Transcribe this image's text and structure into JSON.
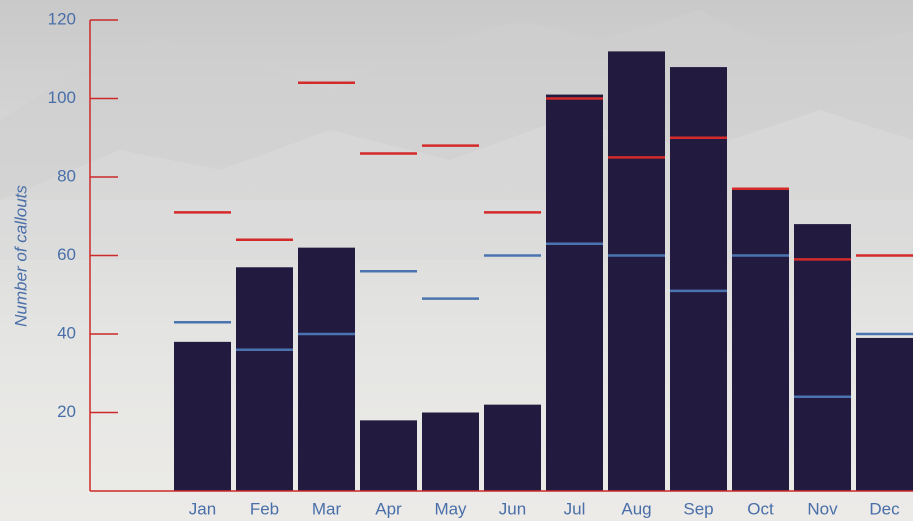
{
  "chart_data": {
    "type": "bar",
    "y_label": "Number of callouts",
    "categories": [
      "Jan",
      "Feb",
      "Mar",
      "Apr",
      "May",
      "Jun",
      "Jul",
      "Aug",
      "Sep",
      "Oct",
      "Nov",
      "Dec"
    ],
    "values": [
      38,
      57,
      62,
      18,
      20,
      22,
      101,
      112,
      108,
      77,
      68,
      39
    ],
    "color": "#231a40",
    "series": [
      {
        "color": "#d42a2a",
        "values": [
          71,
          64,
          104,
          86,
          88,
          71,
          100,
          85,
          90,
          77,
          59,
          60
        ]
      },
      {
        "color": "#4a74b0",
        "values": [
          43,
          36,
          40,
          56,
          49,
          60,
          63,
          60,
          51,
          60,
          24,
          40
        ]
      }
    ],
    "ylim": [
      0,
      120
    ],
    "yticks": [
      20,
      40,
      60,
      80,
      100,
      120
    ],
    "axis_color": "#cc2a2a",
    "label_color": "#4a6fa8"
  }
}
